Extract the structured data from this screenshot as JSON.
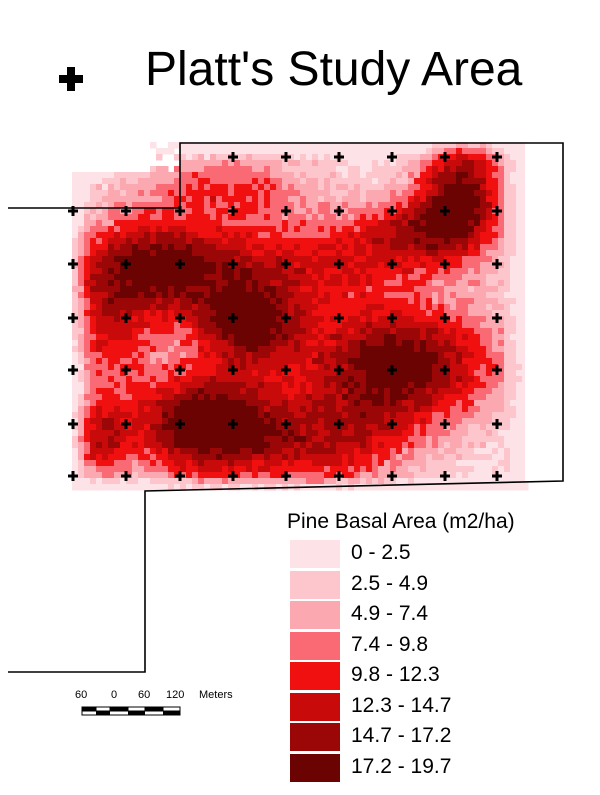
{
  "title": "Platt's Study Area",
  "legend": {
    "title": "Pine Basal Area (m2/ha)",
    "classes": [
      {
        "label": "0 - 2.5",
        "color": "#fde3e7"
      },
      {
        "label": "2.5 - 4.9",
        "color": "#fcc6cc"
      },
      {
        "label": "4.9 - 7.4",
        "color": "#fba8b0"
      },
      {
        "label": "7.4 - 9.8",
        "color": "#f96a74"
      },
      {
        "label": "9.8 - 12.3",
        "color": "#f01010"
      },
      {
        "label": "12.3 - 14.7",
        "color": "#c80a0a"
      },
      {
        "label": "14.7 - 17.2",
        "color": "#9b0707"
      },
      {
        "label": "17.2 - 19.7",
        "color": "#6b0303"
      }
    ]
  },
  "scale_bar": {
    "labels": [
      "60",
      "0",
      "60",
      "120"
    ],
    "unit": "Meters"
  },
  "icons": {
    "sample_point": "plus-marker-icon"
  }
}
